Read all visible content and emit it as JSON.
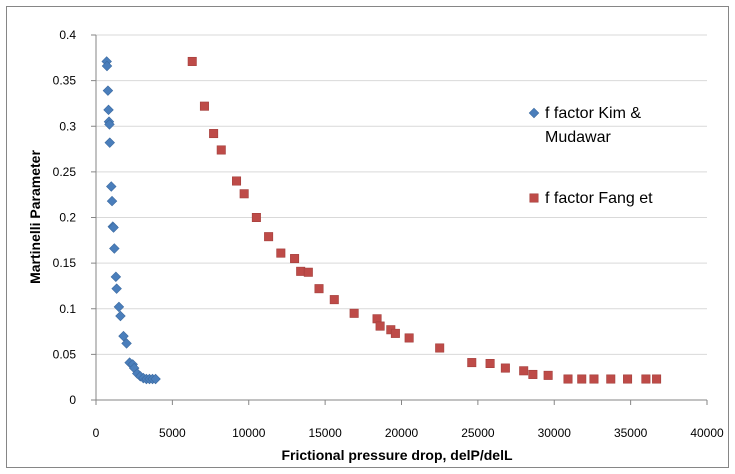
{
  "chart_data": {
    "type": "scatter",
    "title": "",
    "xlabel": "Frictional pressure drop, delP/delL",
    "ylabel": "Martinelli Parameter",
    "xlim": [
      0,
      40000
    ],
    "ylim": [
      0,
      0.4
    ],
    "x_ticks": [
      0,
      5000,
      10000,
      15000,
      20000,
      25000,
      30000,
      35000,
      40000
    ],
    "y_ticks": [
      0,
      0.05,
      0.1,
      0.15,
      0.2,
      0.25,
      0.3,
      0.35,
      0.4
    ],
    "x_tick_labels": [
      "0",
      "5000",
      "10000",
      "15000",
      "20000",
      "25000",
      "30000",
      "35000",
      "40000"
    ],
    "y_tick_labels": [
      "0",
      "0.05",
      "0.1",
      "0.15",
      "0.2",
      "0.25",
      "0.3",
      "0.35",
      "0.4"
    ],
    "grid": "horizontal",
    "legend_position": "right",
    "series": [
      {
        "name": "f factor Kim & Mudawar",
        "legend_lines": [
          "f factor Kim &",
          "Mudawar"
        ],
        "marker": "diamond",
        "color": "#4a7ebb",
        "points": [
          [
            700,
            0.371
          ],
          [
            720,
            0.366
          ],
          [
            780,
            0.339
          ],
          [
            820,
            0.318
          ],
          [
            850,
            0.305
          ],
          [
            880,
            0.302
          ],
          [
            900,
            0.282
          ],
          [
            1000,
            0.234
          ],
          [
            1050,
            0.218
          ],
          [
            1100,
            0.19
          ],
          [
            1150,
            0.189
          ],
          [
            1200,
            0.166
          ],
          [
            1300,
            0.135
          ],
          [
            1350,
            0.122
          ],
          [
            1500,
            0.102
          ],
          [
            1600,
            0.092
          ],
          [
            1800,
            0.07
          ],
          [
            2000,
            0.062
          ],
          [
            2200,
            0.041
          ],
          [
            2400,
            0.039
          ],
          [
            2500,
            0.035
          ],
          [
            2700,
            0.029
          ],
          [
            2900,
            0.026
          ],
          [
            3100,
            0.024
          ],
          [
            3300,
            0.023
          ],
          [
            3500,
            0.023
          ],
          [
            3700,
            0.023
          ],
          [
            3900,
            0.023
          ]
        ]
      },
      {
        "name": "f factor Fang et",
        "legend_lines": [
          "f factor Fang et"
        ],
        "marker": "square",
        "color": "#be4b48",
        "points": [
          [
            6300,
            0.371
          ],
          [
            7100,
            0.322
          ],
          [
            7700,
            0.292
          ],
          [
            8200,
            0.274
          ],
          [
            9200,
            0.24
          ],
          [
            9700,
            0.226
          ],
          [
            10500,
            0.2
          ],
          [
            11300,
            0.179
          ],
          [
            12100,
            0.161
          ],
          [
            13000,
            0.155
          ],
          [
            13400,
            0.141
          ],
          [
            13900,
            0.14
          ],
          [
            14600,
            0.122
          ],
          [
            15600,
            0.11
          ],
          [
            16900,
            0.095
          ],
          [
            18400,
            0.089
          ],
          [
            18600,
            0.081
          ],
          [
            19300,
            0.077
          ],
          [
            19600,
            0.073
          ],
          [
            20500,
            0.068
          ],
          [
            22500,
            0.057
          ],
          [
            24600,
            0.041
          ],
          [
            25800,
            0.04
          ],
          [
            26800,
            0.035
          ],
          [
            28000,
            0.032
          ],
          [
            28600,
            0.028
          ],
          [
            29600,
            0.027
          ],
          [
            30900,
            0.023
          ],
          [
            31800,
            0.023
          ],
          [
            32600,
            0.023
          ],
          [
            33700,
            0.023
          ],
          [
            34800,
            0.023
          ],
          [
            36000,
            0.023
          ],
          [
            36700,
            0.023
          ]
        ]
      }
    ]
  }
}
